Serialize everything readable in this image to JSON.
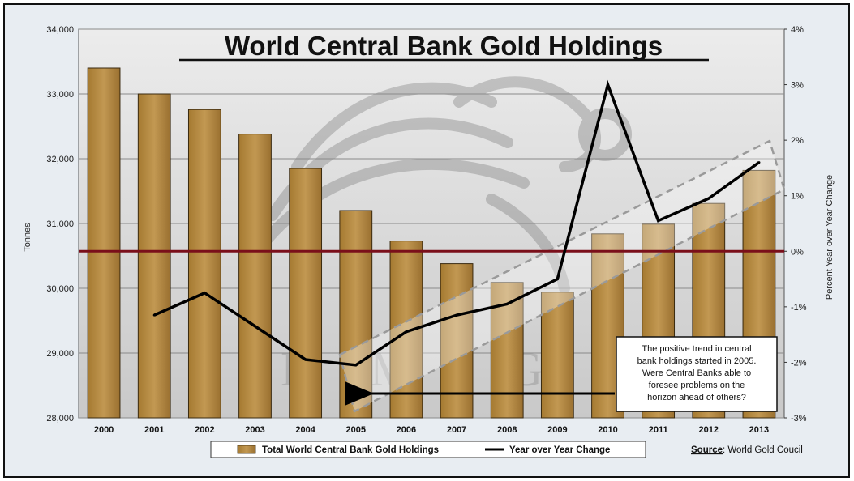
{
  "chart_data": {
    "type": "bar",
    "title": "World Central Bank Gold Holdings",
    "categories": [
      "2000",
      "2001",
      "2002",
      "2003",
      "2004",
      "2005",
      "2006",
      "2007",
      "2008",
      "2009",
      "2010",
      "2011",
      "2012",
      "2013"
    ],
    "series": [
      {
        "name": "Total World Central Bank Gold Holdings",
        "type": "bar",
        "axis": "left",
        "values": [
          33400,
          33000,
          32760,
          32380,
          31850,
          31200,
          30730,
          30380,
          30090,
          29940,
          30840,
          30990,
          31310,
          31820
        ]
      },
      {
        "name": "Year over Year Change",
        "type": "line",
        "axis": "right",
        "values": [
          null,
          -1.15,
          -0.75,
          -1.35,
          -1.95,
          -2.05,
          -1.45,
          -1.15,
          -0.95,
          -0.5,
          3.0,
          0.55,
          0.95,
          1.6
        ]
      }
    ],
    "ylabel": "Tonnes",
    "ylim": [
      28000,
      34000
    ],
    "yticks": [
      "34,000",
      "33,000",
      "32,000",
      "31,000",
      "30,000",
      "29,000",
      "28,000"
    ],
    "y2label": "Percent Year over Year Change",
    "y2lim": [
      -3,
      4
    ],
    "y2ticks": [
      "4%",
      "3%",
      "2%",
      "1%",
      "0%",
      "-1%",
      "-2%",
      "-3%"
    ],
    "zero_line_pct": 0,
    "grid": true,
    "legend_position": "bottom",
    "annotation": {
      "lines": [
        "The positive trend in central",
        "bank holdings started in 2005.",
        "Were Central Banks able to",
        "foresee problems on the",
        "horizon ahead of others?"
      ],
      "points_to": "2005"
    },
    "source_label": "Source",
    "source_text": ": World Gold Coucil",
    "colors": {
      "bar": "#b5893f",
      "bar_edge": "#3a2a10",
      "line": "#000000",
      "zero_line": "#7a0f1a",
      "plot_bg": "#d8d8d8"
    }
  }
}
